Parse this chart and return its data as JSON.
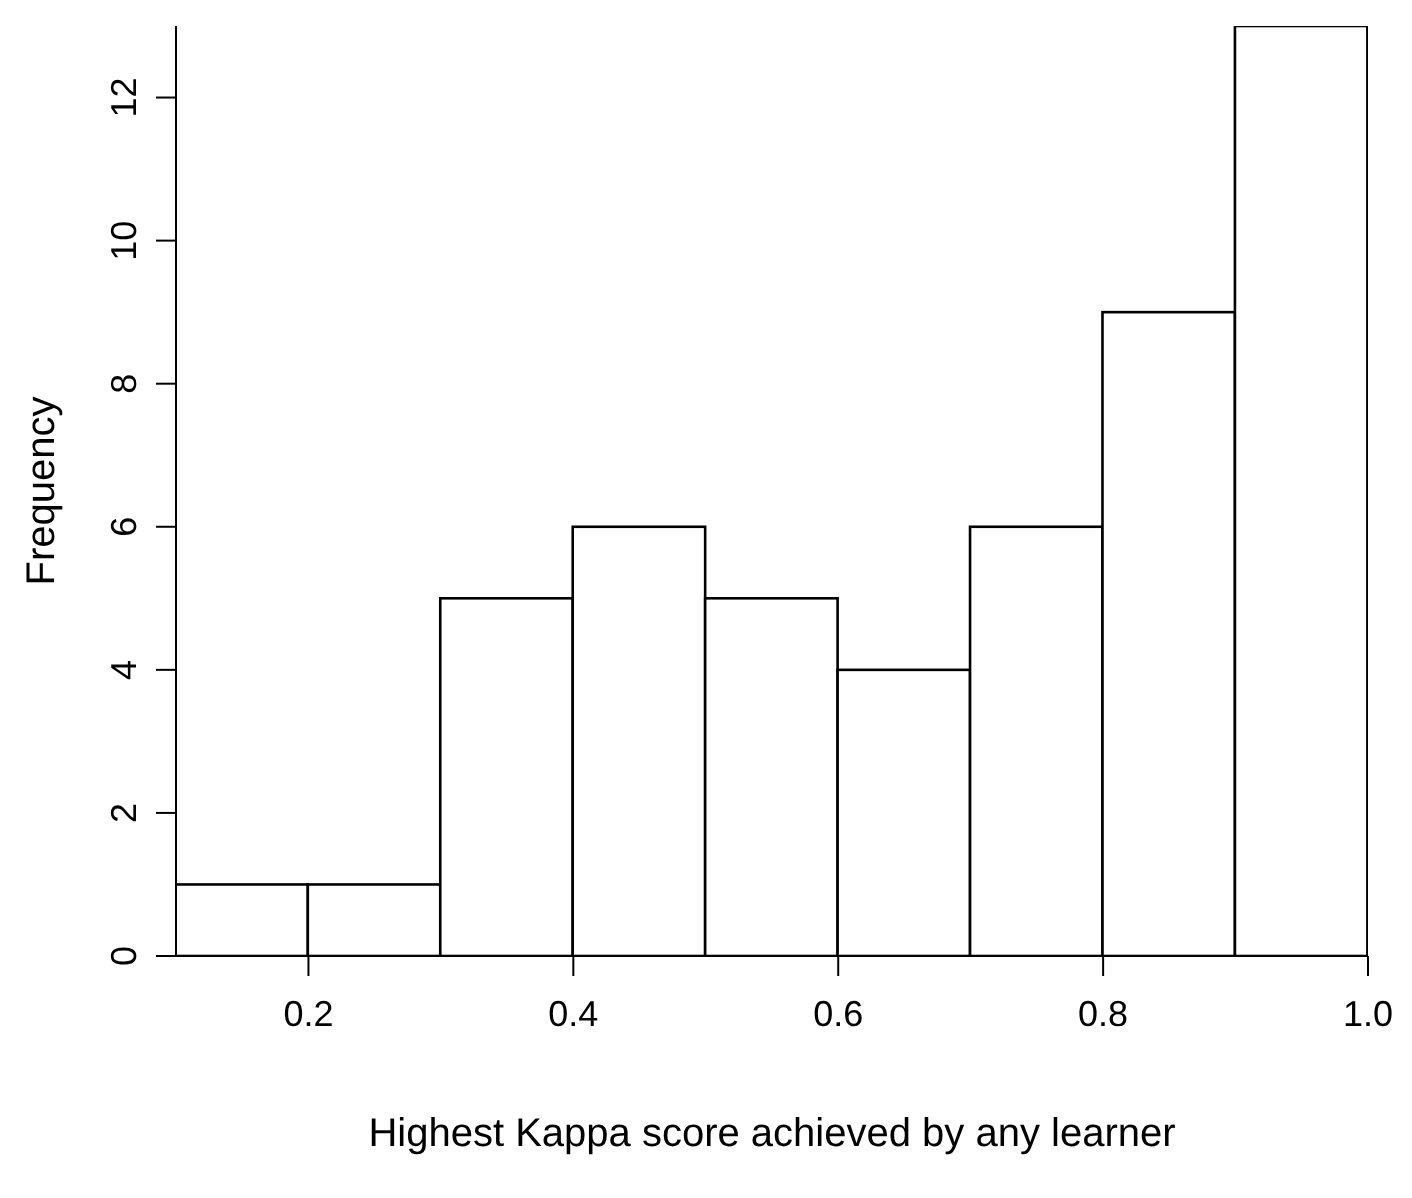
{
  "chart_data": {
    "type": "histogram",
    "xlabel": "Highest Kappa score achieved by any learner",
    "ylabel": "Frequency",
    "bins": [
      0.1,
      0.2,
      0.3,
      0.4,
      0.5,
      0.6,
      0.7,
      0.8,
      0.9,
      1.0
    ],
    "values": [
      1,
      1,
      5,
      6,
      5,
      4,
      6,
      9,
      13
    ],
    "color": "#ffffff",
    "xlim": [
      0.1,
      1.0
    ],
    "xticks": [
      {
        "value": 0.2,
        "label": "0.2"
      },
      {
        "value": 0.4,
        "label": "0.4"
      },
      {
        "value": 0.6,
        "label": "0.6"
      },
      {
        "value": 0.8,
        "label": "0.8"
      },
      {
        "value": 1.0,
        "label": "1.0"
      }
    ],
    "ylim": [
      0,
      13
    ],
    "yticks": [
      0,
      2,
      4,
      6,
      8,
      10,
      12
    ],
    "grid": false,
    "legend": false
  }
}
